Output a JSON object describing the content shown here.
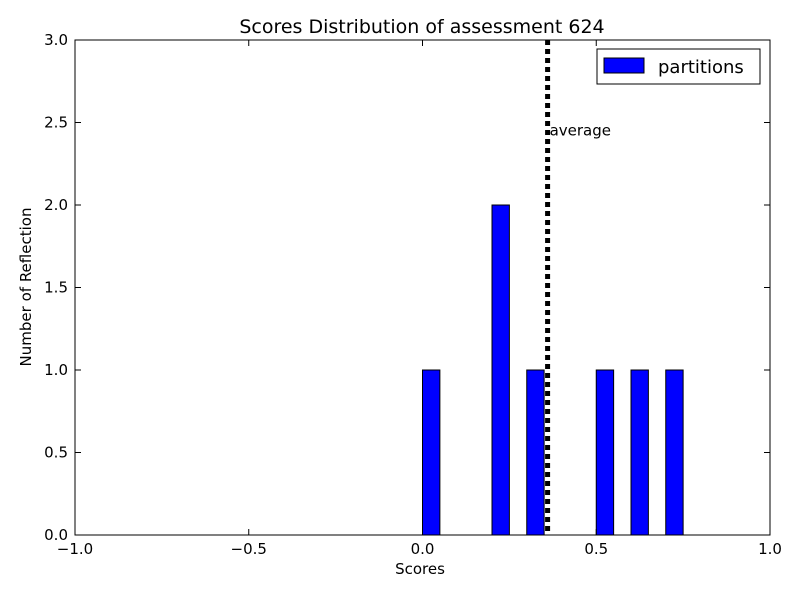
{
  "chart_data": {
    "type": "bar",
    "title": "Scores Distribution of assessment 624",
    "xlabel": "Scores",
    "ylabel": "Number of Reflection",
    "xlim": [
      -1.0,
      1.0
    ],
    "ylim": [
      0.0,
      3.0
    ],
    "x_ticks": [
      "−1.0",
      "−0.5",
      "0.0",
      "0.5",
      "1.0"
    ],
    "y_ticks": [
      "0.0",
      "0.5",
      "1.0",
      "1.5",
      "2.0",
      "2.5",
      "3.0"
    ],
    "grid": false,
    "legend_position": "top-right",
    "series": [
      {
        "name": "partitions",
        "color": "#0000ff",
        "bar_width": 0.05,
        "bars": [
          {
            "x": 0.0,
            "value": 1
          },
          {
            "x": 0.2,
            "value": 2
          },
          {
            "x": 0.3,
            "value": 1
          },
          {
            "x": 0.5,
            "value": 1
          },
          {
            "x": 0.6,
            "value": 1
          },
          {
            "x": 0.7,
            "value": 1
          }
        ]
      }
    ],
    "average_line": {
      "x": 0.36,
      "label": "average",
      "color": "#000000",
      "style": "dotted"
    }
  }
}
